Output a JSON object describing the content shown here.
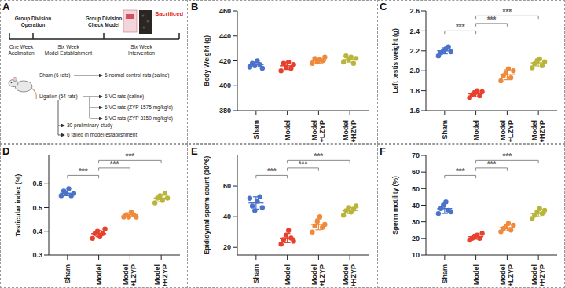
{
  "diagram": {
    "panel_label": "A",
    "timeline": {
      "marks": [
        {
          "label": [
            "Group Division",
            "Operation"
          ]
        },
        {
          "label": [
            "Group Division",
            "Check Model"
          ]
        },
        {
          "label": [
            "Sacrificed"
          ],
          "color": "#e0201b"
        }
      ],
      "periods": [
        [
          "One Week",
          "Acclimation"
        ],
        [
          "Six Week",
          "Model Establishment"
        ],
        [
          "Six Week",
          "Intervention"
        ]
      ]
    },
    "groups": [
      {
        "label": "Sham (6 rats)",
        "outcomes": [
          "6 normal control rats (saline)"
        ]
      },
      {
        "label": "Ligation (54 rats)",
        "outcomes": [
          "6 VC rats (saline)",
          "6 VC rats (ZYP 1575 mg/kg/d)",
          "6 VC rats (ZYP 3150 mg/kg/d)"
        ],
        "notes": [
          "30 preliminary study",
          "6 failed in model establishment"
        ]
      }
    ]
  },
  "chart_data": [
    {
      "panel_label": "B",
      "type": "scatter",
      "y_label": "Body Weight (g)",
      "categories": [
        "Sham",
        "Model",
        "Model +LZYP",
        "Model +HZYP"
      ],
      "colors": [
        "#4a72c8",
        "#e8402e",
        "#ef8a3c",
        "#b9b53a"
      ],
      "values": [
        [
          415,
          418,
          416,
          420,
          417,
          414
        ],
        [
          412,
          418,
          415,
          419,
          414,
          417
        ],
        [
          418,
          422,
          419,
          421,
          420,
          423
        ],
        [
          419,
          424,
          421,
          423,
          418,
          422
        ]
      ],
      "mean": [
        417,
        416,
        420,
        421
      ],
      "sd": [
        2,
        3,
        2,
        2
      ],
      "ylim": [
        380,
        460
      ],
      "yticks": [
        380,
        400,
        420,
        440,
        460
      ],
      "significance": []
    },
    {
      "panel_label": "C",
      "type": "scatter",
      "y_label": "Left testis weight (g)",
      "categories": [
        "Sham",
        "Model",
        "Model +LZYP",
        "Model +HZYP"
      ],
      "colors": [
        "#4a72c8",
        "#e8402e",
        "#ef8a3c",
        "#b9b53a"
      ],
      "values": [
        [
          2.15,
          2.18,
          2.2,
          2.22,
          2.24,
          2.19
        ],
        [
          1.73,
          1.76,
          1.78,
          1.8,
          1.75,
          1.79
        ],
        [
          1.9,
          1.95,
          1.98,
          2.02,
          1.93,
          2.0
        ],
        [
          2.03,
          2.07,
          2.1,
          2.12,
          2.05,
          2.09
        ]
      ],
      "mean": [
        2.2,
        1.77,
        1.96,
        2.08
      ],
      "sd": [
        0.03,
        0.03,
        0.05,
        0.04
      ],
      "ylim": [
        1.6,
        2.6
      ],
      "yticks": [
        1.6,
        1.8,
        {
          "value": 2,
          "label": "2.0"
        },
        2.2,
        2.4,
        2.6
      ],
      "significance": [
        {
          "pair": [
            "Sham",
            "Model"
          ],
          "text": "***"
        },
        {
          "pair": [
            "Model",
            "Model +LZYP"
          ],
          "text": "***"
        },
        {
          "pair": [
            "Model",
            "Model +HZYP"
          ],
          "text": "***"
        }
      ]
    },
    {
      "panel_label": "D",
      "type": "scatter",
      "y_label": "Testicular index (%)",
      "categories": [
        "Sham",
        "Model",
        "Model +LZYP",
        "Model +HZYP"
      ],
      "colors": [
        "#4a72c8",
        "#e8402e",
        "#ef8a3c",
        "#b9b53a"
      ],
      "values": [
        [
          0.55,
          0.57,
          0.56,
          0.58,
          0.55,
          0.56
        ],
        [
          0.37,
          0.39,
          0.4,
          0.38,
          0.39,
          0.41
        ],
        [
          0.46,
          0.47,
          0.46,
          0.48,
          0.47,
          0.46
        ],
        [
          0.52,
          0.54,
          0.55,
          0.53,
          0.56,
          0.54
        ]
      ],
      "mean": [
        0.56,
        0.39,
        0.47,
        0.54
      ],
      "sd": [
        0.01,
        0.013,
        0.008,
        0.015
      ],
      "ylim": [
        0.3,
        0.72
      ],
      "yticks": [
        0.3,
        0.4,
        0.5,
        0.6
      ],
      "significance": [
        {
          "pair": [
            "Sham",
            "Model"
          ],
          "text": "***"
        },
        {
          "pair": [
            "Model",
            "Model +LZYP"
          ],
          "text": "***"
        },
        {
          "pair": [
            "Model",
            "Model +HZYP"
          ],
          "text": "***"
        }
      ]
    },
    {
      "panel_label": "E",
      "type": "scatter",
      "y_label": "Epididymal sperm count (10^6)",
      "categories": [
        "Sham",
        "Model",
        "Model +LZYP",
        "Model +HZYP"
      ],
      "colors": [
        "#4a72c8",
        "#e8402e",
        "#ef8a3c",
        "#b9b53a"
      ],
      "values": [
        [
          52,
          47,
          44,
          50,
          53,
          46
        ],
        [
          22,
          25,
          28,
          31,
          26,
          24
        ],
        [
          30,
          34,
          37,
          40,
          33,
          35
        ],
        [
          41,
          44,
          46,
          43,
          45,
          47
        ]
      ],
      "mean": [
        49,
        26,
        35,
        44
      ],
      "sd": [
        4,
        3,
        3.5,
        2
      ],
      "ylim": [
        15,
        80
      ],
      "yticks": [
        20,
        40,
        60
      ],
      "significance": [
        {
          "pair": [
            "Sham",
            "Model"
          ],
          "text": "***"
        },
        {
          "pair": [
            "Model",
            "Model +LZYP"
          ],
          "text": "***"
        },
        {
          "pair": [
            "Model",
            "Model +HZYP"
          ],
          "text": "***"
        }
      ]
    },
    {
      "panel_label": "F",
      "type": "scatter",
      "y_label": "Sperm motility (%)",
      "categories": [
        "Sham",
        "Model",
        "Model +LZYP",
        "Model +HZYP"
      ],
      "colors": [
        "#4a72c8",
        "#e8402e",
        "#ef8a3c",
        "#b9b53a"
      ],
      "values": [
        [
          35,
          38,
          40,
          42,
          37,
          36
        ],
        [
          19,
          20,
          21,
          22,
          20,
          23
        ],
        [
          24,
          26,
          27,
          29,
          25,
          28
        ],
        [
          32,
          34,
          36,
          38,
          35,
          37
        ]
      ],
      "mean": [
        38,
        21,
        26.5,
        35
      ],
      "sd": [
        3,
        1.5,
        2,
        2
      ],
      "ylim": [
        10,
        70
      ],
      "yticks": [
        10,
        20,
        30,
        40,
        50,
        60,
        70
      ],
      "significance": [
        {
          "pair": [
            "Sham",
            "Model"
          ],
          "text": "***"
        },
        {
          "pair": [
            "Model",
            "Model +LZYP"
          ],
          "text": "***"
        },
        {
          "pair": [
            "Model",
            "Model +HZYP"
          ],
          "text": "***"
        }
      ]
    }
  ]
}
